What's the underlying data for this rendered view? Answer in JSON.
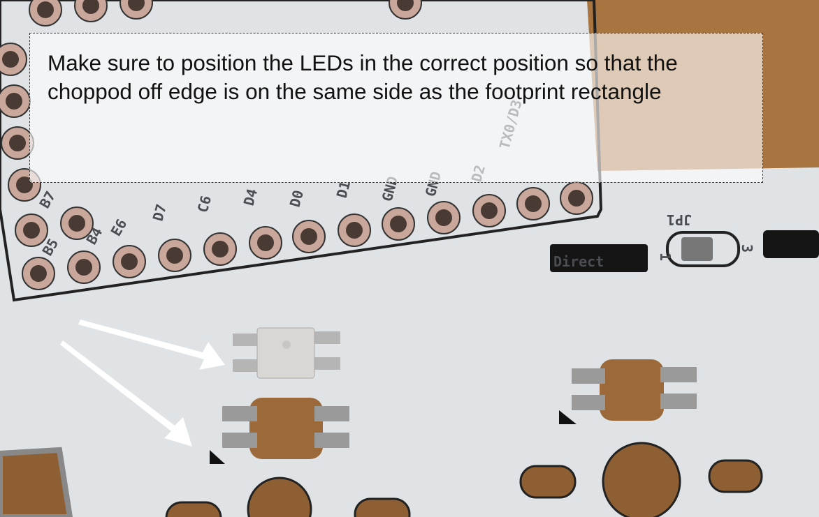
{
  "caption": "Make sure to position the LEDs in the correct position so that the choppod off edge is on the same side as the footprint rectangle",
  "silkscreen": [
    "Direct",
    "JP1",
    "1",
    "3",
    "GND",
    "GND",
    "D1",
    "D0",
    "D4",
    "C6",
    "D7",
    "E6",
    "B4",
    "B5",
    "B7",
    "D2",
    "TX0/D3"
  ]
}
